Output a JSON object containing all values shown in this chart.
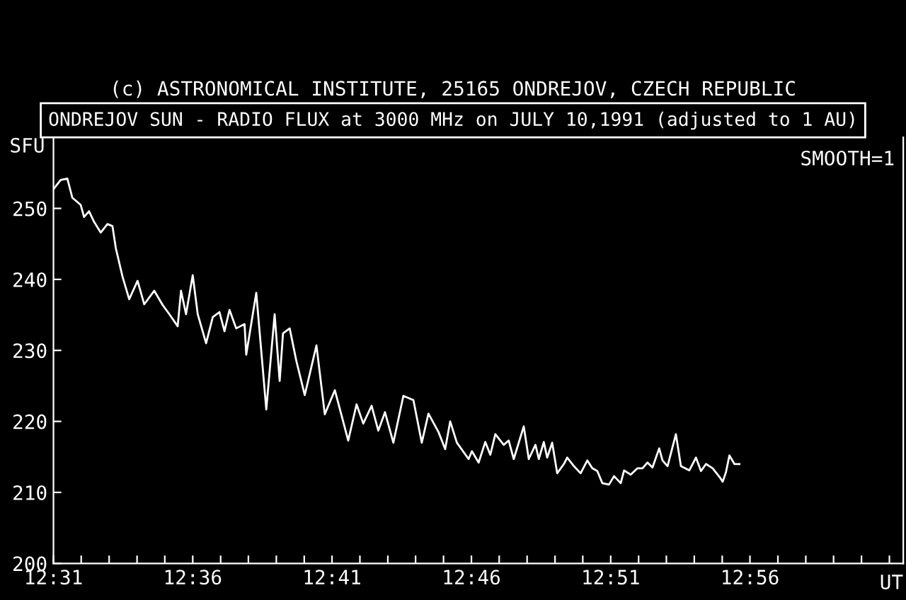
{
  "chart_data": {
    "type": "line",
    "title": "ONDREJOV SUN - RADIO FLUX at 3000 MHz on JULY 10,1991 (adjusted to 1 AU)",
    "annotations": [
      "(c) ASTRONOMICAL INSTITUTE, 25165 ONDREJOV, CZECH REPUBLIC",
      "SMOOTH=1"
    ],
    "ylabel": "SFU",
    "xlabel": "UT",
    "x": [
      12.517,
      12.521,
      12.525,
      12.528,
      12.533,
      12.535,
      12.538,
      12.541,
      12.545,
      12.549,
      12.552,
      12.554,
      12.558,
      12.562,
      12.567,
      12.571,
      12.577,
      12.582,
      12.586,
      12.591,
      12.593,
      12.596,
      12.6,
      12.603,
      12.608,
      12.612,
      12.616,
      12.619,
      12.622,
      12.626,
      12.631,
      12.632,
      12.638,
      12.644,
      12.649,
      12.652,
      12.654,
      12.658,
      12.662,
      12.667,
      12.674,
      12.679,
      12.685,
      12.693,
      12.698,
      12.702,
      12.707,
      12.711,
      12.715,
      12.72,
      12.726,
      12.732,
      12.737,
      12.741,
      12.747,
      12.751,
      12.754,
      12.758,
      12.765,
      12.767,
      12.771,
      12.775,
      12.778,
      12.781,
      12.786,
      12.789,
      12.792,
      12.798,
      12.801,
      12.805,
      12.807,
      12.81,
      12.812,
      12.815,
      12.818,
      12.822,
      12.824,
      12.828,
      12.832,
      12.836,
      12.839,
      12.842,
      12.845,
      12.849,
      12.852,
      12.856,
      12.858,
      12.862,
      12.866,
      12.869,
      12.872,
      12.875,
      12.879,
      12.881,
      12.884,
      12.889,
      12.892,
      12.897,
      12.901,
      12.904,
      12.907,
      12.911,
      12.915,
      12.917,
      12.919,
      12.921,
      12.924,
      12.927
    ],
    "series": [
      {
        "color": "#ffffff",
        "values": [
          252.8,
          254.0,
          254.2,
          251.5,
          250.5,
          248.8,
          249.6,
          248.1,
          246.6,
          247.8,
          247.5,
          244.4,
          240.4,
          237.2,
          239.8,
          236.5,
          238.4,
          236.4,
          235.1,
          233.4,
          238.4,
          235.1,
          240.6,
          235.1,
          231.0,
          234.7,
          235.4,
          232.7,
          235.7,
          233.1,
          233.7,
          229.4,
          238.1,
          221.7,
          235.1,
          225.7,
          232.4,
          233.1,
          228.5,
          223.7,
          230.7,
          221.0,
          224.4,
          217.3,
          222.4,
          219.7,
          222.2,
          218.7,
          221.3,
          217.0,
          223.6,
          223.0,
          217.0,
          221.1,
          218.5,
          216.1,
          220.0,
          217.0,
          214.7,
          215.8,
          214.2,
          217.1,
          215.3,
          218.2,
          216.7,
          217.3,
          214.7,
          219.3,
          214.7,
          216.7,
          214.7,
          217.1,
          214.9,
          217.0,
          212.7,
          214.0,
          214.9,
          213.7,
          212.7,
          214.5,
          213.4,
          213.0,
          211.3,
          211.1,
          212.3,
          211.3,
          213.1,
          212.5,
          213.4,
          213.4,
          214.2,
          213.5,
          216.2,
          214.5,
          213.7,
          218.2,
          213.7,
          213.1,
          214.9,
          213.0,
          214.0,
          213.4,
          212.2,
          211.5,
          212.9,
          215.2,
          214.0,
          214.0
        ]
      }
    ],
    "xlim": [
      12.5167,
      13.025
    ],
    "xticks": [
      {
        "value": 12.5167,
        "label": "12:31"
      },
      {
        "value": 12.5333,
        "label": null
      },
      {
        "value": 12.55,
        "label": null
      },
      {
        "value": 12.5667,
        "label": null
      },
      {
        "value": 12.5833,
        "label": null
      },
      {
        "value": 12.6,
        "label": "12:36"
      },
      {
        "value": 12.6167,
        "label": null
      },
      {
        "value": 12.6333,
        "label": null
      },
      {
        "value": 12.65,
        "label": null
      },
      {
        "value": 12.6667,
        "label": null
      },
      {
        "value": 12.6833,
        "label": "12:41"
      },
      {
        "value": 12.7,
        "label": null
      },
      {
        "value": 12.7167,
        "label": null
      },
      {
        "value": 12.7333,
        "label": null
      },
      {
        "value": 12.75,
        "label": null
      },
      {
        "value": 12.7667,
        "label": "12:46"
      },
      {
        "value": 12.7833,
        "label": null
      },
      {
        "value": 12.8,
        "label": null
      },
      {
        "value": 12.8167,
        "label": null
      },
      {
        "value": 12.8333,
        "label": null
      },
      {
        "value": 12.85,
        "label": "12:51"
      },
      {
        "value": 12.8667,
        "label": null
      },
      {
        "value": 12.8833,
        "label": null
      },
      {
        "value": 12.9,
        "label": null
      },
      {
        "value": 12.9167,
        "label": null
      },
      {
        "value": 12.9333,
        "label": "12:56"
      },
      {
        "value": 12.95,
        "label": null
      },
      {
        "value": 12.9667,
        "label": null
      },
      {
        "value": 12.9833,
        "label": null
      },
      {
        "value": 13.0,
        "label": null
      },
      {
        "value": 13.0167,
        "label": null
      }
    ],
    "ylim": [
      200,
      260
    ],
    "yticks": [
      200,
      210,
      220,
      230,
      240,
      250
    ],
    "grid": false,
    "legend": false,
    "marker": "none",
    "line_style": "solid"
  }
}
